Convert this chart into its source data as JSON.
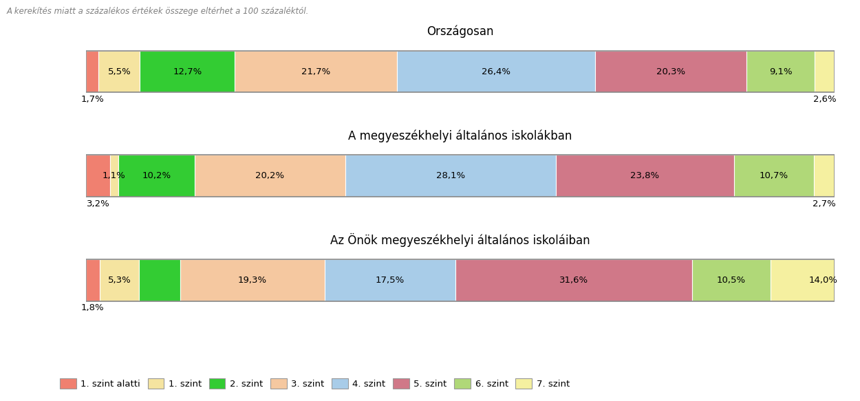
{
  "title_note": "A kerekítés miatt a százalékos értékek összege eltérhet a 100 százaléktól.",
  "bars": [
    {
      "title": "Országosan",
      "values": [
        1.7,
        5.5,
        12.7,
        21.7,
        26.4,
        20.3,
        9.1,
        2.6
      ],
      "labels": [
        "1,7%",
        "5,5%",
        "12,7%",
        "21,7%",
        "26,4%",
        "20,3%",
        "9,1%",
        "2,6%"
      ],
      "label_inside": [
        false,
        true,
        true,
        true,
        true,
        true,
        true,
        false
      ]
    },
    {
      "title": "A megyeszékhelyi általános iskolákban",
      "values": [
        3.2,
        1.1,
        10.2,
        20.2,
        28.1,
        23.8,
        10.7,
        2.7
      ],
      "labels": [
        "3,2%",
        "1,1%",
        "10,2%",
        "20,2%",
        "28,1%",
        "23,8%",
        "10,7%",
        "2,7%"
      ],
      "label_inside": [
        false,
        true,
        true,
        true,
        true,
        true,
        true,
        false
      ]
    },
    {
      "title": "Az Önök megyeszékhelyi általános iskoláiban",
      "values": [
        1.8,
        5.3,
        5.5,
        19.3,
        17.5,
        31.6,
        10.5,
        14.0
      ],
      "labels": [
        "1,8%",
        "5,3%",
        "",
        "19,3%",
        "17,5%",
        "31,6%",
        "10,5%",
        "14,0%"
      ],
      "label_inside": [
        false,
        true,
        false,
        true,
        true,
        true,
        true,
        true
      ]
    }
  ],
  "segment_colors": [
    "#F08070",
    "#F5E4A0",
    "#33CC33",
    "#F5C8A0",
    "#A8CCE8",
    "#D07888",
    "#B0D878",
    "#F5F0A0"
  ],
  "legend_labels": [
    "1. szint alatti",
    "1. szint",
    "2. szint",
    "3. szint",
    "4. szint",
    "5. szint",
    "6. szint",
    "7. szint"
  ],
  "figsize": [
    12.5,
    5.83
  ],
  "dpi": 100,
  "background_color": "#FFFFFF",
  "title_note_color": "#808080",
  "border_color": "#888888"
}
